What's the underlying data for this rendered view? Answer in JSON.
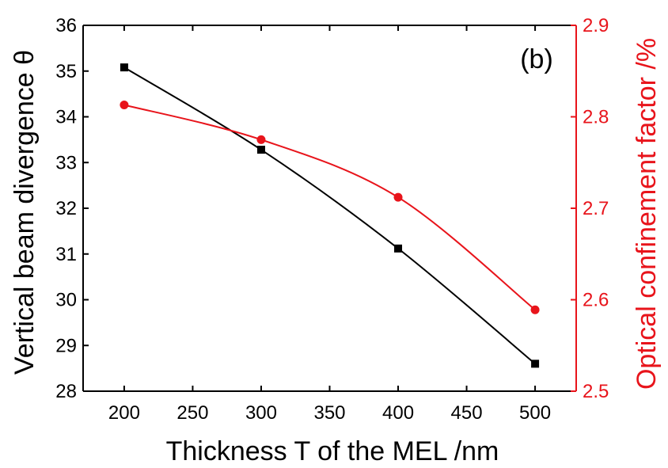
{
  "chart_data": {
    "type": "line",
    "panel_label": "(b)",
    "xlabel": "Thickness T of the MEL /nm",
    "ylabel_left": "Vertical beam divergence θ",
    "ylabel_right": "Optical confinement factor /%",
    "xlim": [
      170,
      530
    ],
    "ylim_left": [
      28,
      36
    ],
    "ylim_right": [
      2.5,
      2.9
    ],
    "x_ticks": [
      "200",
      "250",
      "300",
      "350",
      "400",
      "450",
      "500"
    ],
    "y_left_ticks": [
      "28",
      "29",
      "30",
      "31",
      "32",
      "33",
      "34",
      "35",
      "36"
    ],
    "y_right_ticks": [
      "2.5",
      "2.6",
      "2.7",
      "2.8",
      "2.9"
    ],
    "grid": false,
    "series": [
      {
        "axis": "left",
        "color": "#000000",
        "marker": "square",
        "x": [
          200,
          300,
          400,
          500
        ],
        "values": [
          35.08,
          33.28,
          31.12,
          28.6
        ]
      },
      {
        "axis": "right",
        "color": "#e8141b",
        "marker": "circle",
        "x": [
          200,
          300,
          400,
          500
        ],
        "values": [
          2.813,
          2.775,
          2.712,
          2.589
        ]
      }
    ]
  },
  "colors": {
    "left_axis": "#000000",
    "right_axis": "#e8141b"
  }
}
